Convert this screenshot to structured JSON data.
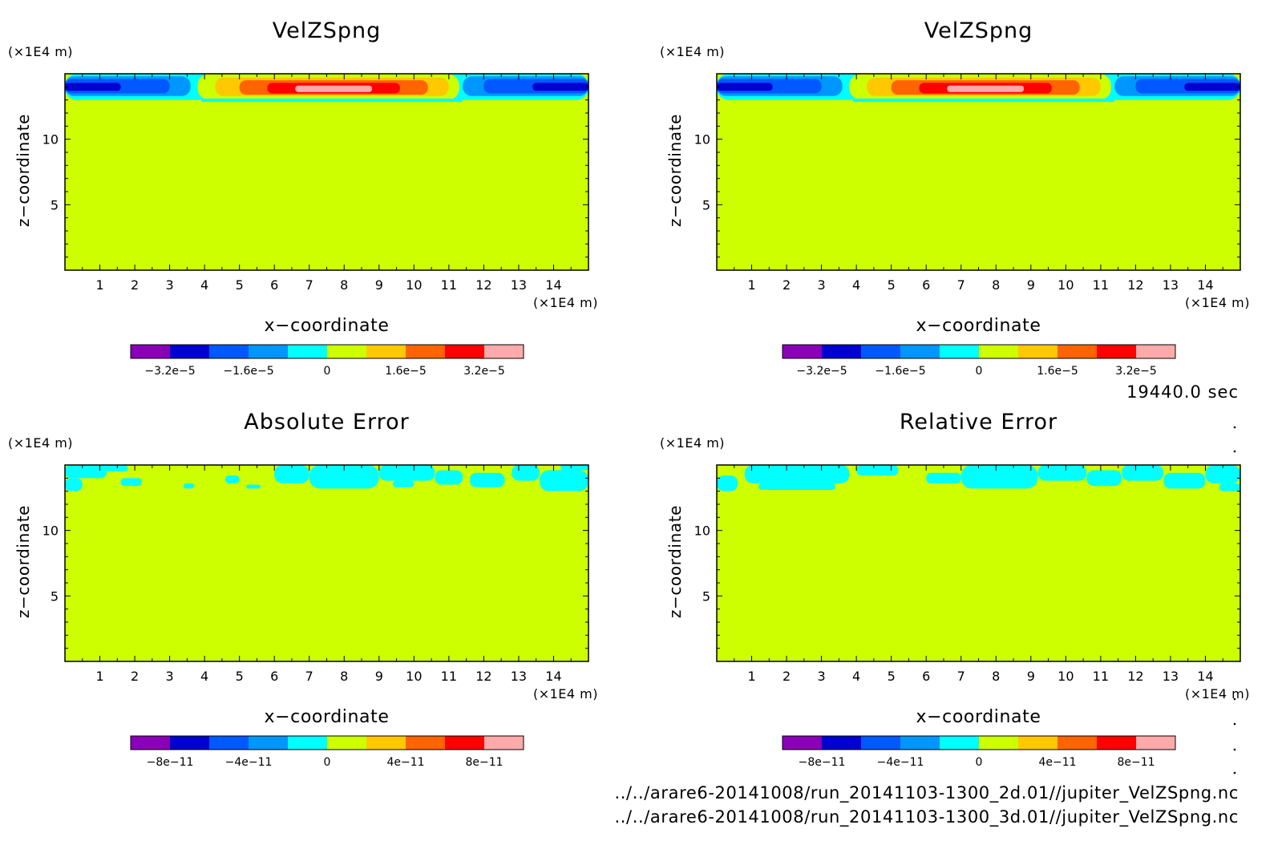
{
  "colors": {
    "background": "#cdff00",
    "frame": "#000000",
    "palette": [
      "#8a00b8",
      "#0000d0",
      "#0058ff",
      "#0096ff",
      "#00ffff",
      "#cdff00",
      "#ffc800",
      "#ff6400",
      "#ff0000",
      "#ffaaaa"
    ]
  },
  "footer": {
    "time_label": "19440.0 sec",
    "file_1": "../../arare6-20141008/run_20141103-1300_2d.01//jupiter_VelZSpng.nc",
    "file_2": "../../arare6-20141008/run_20141103-1300_3d.01//jupiter_VelZSpng.nc"
  },
  "chart_data": [
    {
      "id": "p1",
      "type": "heatmap",
      "title": "VelZSpng",
      "xlabel": "x−coordinate",
      "ylabel": "z−coordinate",
      "xunit": "(×1E4 m)",
      "yunit": "(×1E4 m)",
      "xlim": [
        0,
        15
      ],
      "ylim": [
        0,
        15
      ],
      "xticks": [
        1,
        2,
        3,
        4,
        5,
        6,
        7,
        8,
        9,
        10,
        11,
        12,
        13,
        14
      ],
      "yticks": [
        5,
        10
      ],
      "colorbar": {
        "levels": 10,
        "ticks": [
          {
            "level": 1,
            "label": "−3.2e−5"
          },
          {
            "level": 3,
            "label": "−1.6e−5"
          },
          {
            "level": 5,
            "label": "0"
          },
          {
            "level": 7,
            "label": "1.6e−5"
          },
          {
            "level": 9,
            "label": "3.2e−5"
          }
        ]
      },
      "bands": [
        {
          "x0": 0,
          "x1": 15,
          "y0": 13.0,
          "y1": 15,
          "color": 4
        },
        {
          "x0": 3.8,
          "x1": 11.3,
          "y0": 13.0,
          "y1": 15,
          "color": 5
        },
        {
          "x0": 0,
          "x1": 3.6,
          "y0": 13.3,
          "y1": 14.8,
          "color": 3
        },
        {
          "x0": 0,
          "x1": 3.0,
          "y0": 13.5,
          "y1": 14.6,
          "color": 2
        },
        {
          "x0": 0,
          "x1": 1.6,
          "y0": 13.7,
          "y1": 14.3,
          "color": 1
        },
        {
          "x0": 11.4,
          "x1": 15,
          "y0": 13.3,
          "y1": 14.8,
          "color": 3
        },
        {
          "x0": 12.0,
          "x1": 15,
          "y0": 13.5,
          "y1": 14.6,
          "color": 2
        },
        {
          "x0": 13.4,
          "x1": 15,
          "y0": 13.7,
          "y1": 14.3,
          "color": 1
        },
        {
          "x0": 4.3,
          "x1": 11.0,
          "y0": 13.3,
          "y1": 14.7,
          "color": 6
        },
        {
          "x0": 5.0,
          "x1": 10.4,
          "y0": 13.4,
          "y1": 14.5,
          "color": 7
        },
        {
          "x0": 5.8,
          "x1": 9.6,
          "y0": 13.5,
          "y1": 14.3,
          "color": 8
        },
        {
          "x0": 6.6,
          "x1": 8.8,
          "y0": 13.6,
          "y1": 14.1,
          "color": 9
        },
        {
          "x0": 3.9,
          "x1": 11.4,
          "y0": 12.85,
          "y1": 13.1,
          "color": 4
        }
      ]
    },
    {
      "id": "p2",
      "type": "heatmap",
      "title": "VelZSpng",
      "xlabel": "x−coordinate",
      "ylabel": "z−coordinate",
      "xunit": "(×1E4 m)",
      "yunit": "(×1E4 m)",
      "xlim": [
        0,
        15
      ],
      "ylim": [
        0,
        15
      ],
      "xticks": [
        1,
        2,
        3,
        4,
        5,
        6,
        7,
        8,
        9,
        10,
        11,
        12,
        13,
        14
      ],
      "yticks": [
        5,
        10
      ],
      "colorbar": {
        "levels": 10,
        "ticks": [
          {
            "level": 1,
            "label": "−3.2e−5"
          },
          {
            "level": 3,
            "label": "−1.6e−5"
          },
          {
            "level": 5,
            "label": "0"
          },
          {
            "level": 7,
            "label": "1.6e−5"
          },
          {
            "level": 9,
            "label": "3.2e−5"
          }
        ]
      },
      "bands": [
        {
          "x0": 0,
          "x1": 15,
          "y0": 13.0,
          "y1": 15,
          "color": 4
        },
        {
          "x0": 3.8,
          "x1": 11.3,
          "y0": 13.0,
          "y1": 15,
          "color": 5
        },
        {
          "x0": 0,
          "x1": 3.6,
          "y0": 13.3,
          "y1": 14.8,
          "color": 3
        },
        {
          "x0": 0,
          "x1": 3.0,
          "y0": 13.5,
          "y1": 14.6,
          "color": 2
        },
        {
          "x0": 0,
          "x1": 1.6,
          "y0": 13.7,
          "y1": 14.3,
          "color": 1
        },
        {
          "x0": 11.4,
          "x1": 15,
          "y0": 13.3,
          "y1": 14.8,
          "color": 3
        },
        {
          "x0": 12.0,
          "x1": 15,
          "y0": 13.5,
          "y1": 14.6,
          "color": 2
        },
        {
          "x0": 13.4,
          "x1": 15,
          "y0": 13.7,
          "y1": 14.3,
          "color": 1
        },
        {
          "x0": 4.3,
          "x1": 11.0,
          "y0": 13.3,
          "y1": 14.7,
          "color": 6
        },
        {
          "x0": 5.0,
          "x1": 10.4,
          "y0": 13.4,
          "y1": 14.5,
          "color": 7
        },
        {
          "x0": 5.8,
          "x1": 9.6,
          "y0": 13.5,
          "y1": 14.3,
          "color": 8
        },
        {
          "x0": 6.6,
          "x1": 8.8,
          "y0": 13.6,
          "y1": 14.1,
          "color": 9
        },
        {
          "x0": 3.9,
          "x1": 11.4,
          "y0": 12.85,
          "y1": 13.1,
          "color": 4
        }
      ]
    },
    {
      "id": "p3",
      "type": "heatmap",
      "title": "Absolute Error",
      "xlabel": "x−coordinate",
      "ylabel": "z−coordinate",
      "xunit": "(×1E4 m)",
      "yunit": "(×1E4 m)",
      "xlim": [
        0,
        15
      ],
      "ylim": [
        0,
        15
      ],
      "xticks": [
        1,
        2,
        3,
        4,
        5,
        6,
        7,
        8,
        9,
        10,
        11,
        12,
        13,
        14
      ],
      "yticks": [
        5,
        10
      ],
      "colorbar": {
        "levels": 10,
        "ticks": [
          {
            "level": 1,
            "label": "−8e−11"
          },
          {
            "level": 3,
            "label": "−4e−11"
          },
          {
            "level": 5,
            "label": "0"
          },
          {
            "level": 7,
            "label": "4e−11"
          },
          {
            "level": 9,
            "label": "8e−11"
          }
        ]
      },
      "bands": [
        {
          "x0": 0,
          "x1": 1.2,
          "y0": 14.0,
          "y1": 15,
          "color": 4
        },
        {
          "x0": 0,
          "x1": 0.5,
          "y0": 13.0,
          "y1": 14.0,
          "color": 4
        },
        {
          "x0": 1.0,
          "x1": 1.8,
          "y0": 14.5,
          "y1": 15,
          "color": 4
        },
        {
          "x0": 1.6,
          "x1": 2.2,
          "y0": 13.4,
          "y1": 14.0,
          "color": 4
        },
        {
          "x0": 3.4,
          "x1": 3.7,
          "y0": 13.2,
          "y1": 13.6,
          "color": 4
        },
        {
          "x0": 4.6,
          "x1": 5.0,
          "y0": 13.6,
          "y1": 14.2,
          "color": 4
        },
        {
          "x0": 5.2,
          "x1": 5.6,
          "y0": 13.2,
          "y1": 13.5,
          "color": 4
        },
        {
          "x0": 6.0,
          "x1": 7.0,
          "y0": 13.6,
          "y1": 15,
          "color": 4
        },
        {
          "x0": 7.0,
          "x1": 9.0,
          "y0": 13.2,
          "y1": 15,
          "color": 4
        },
        {
          "x0": 9.0,
          "x1": 10.6,
          "y0": 13.8,
          "y1": 15,
          "color": 4
        },
        {
          "x0": 9.4,
          "x1": 10.0,
          "y0": 13.3,
          "y1": 13.8,
          "color": 4
        },
        {
          "x0": 10.6,
          "x1": 11.4,
          "y0": 13.5,
          "y1": 14.6,
          "color": 4
        },
        {
          "x0": 11.6,
          "x1": 12.6,
          "y0": 13.3,
          "y1": 14.4,
          "color": 4
        },
        {
          "x0": 12.8,
          "x1": 13.6,
          "y0": 13.8,
          "y1": 15,
          "color": 4
        },
        {
          "x0": 13.6,
          "x1": 15,
          "y0": 13.0,
          "y1": 14.6,
          "color": 4
        },
        {
          "x0": 14.2,
          "x1": 15,
          "y0": 14.6,
          "y1": 15,
          "color": 4
        }
      ]
    },
    {
      "id": "p4",
      "type": "heatmap",
      "title": "Relative Error",
      "xlabel": "x−coordinate",
      "ylabel": "z−coordinate",
      "xunit": "(×1E4 m)",
      "yunit": "(×1E4 m)",
      "xlim": [
        0,
        15
      ],
      "ylim": [
        0,
        15
      ],
      "xticks": [
        1,
        2,
        3,
        4,
        5,
        6,
        7,
        8,
        9,
        10,
        11,
        12,
        13,
        14
      ],
      "yticks": [
        5,
        10
      ],
      "colorbar": {
        "levels": 10,
        "ticks": [
          {
            "level": 1,
            "label": "−8e−11"
          },
          {
            "level": 3,
            "label": "−4e−11"
          },
          {
            "level": 5,
            "label": "0"
          },
          {
            "level": 7,
            "label": "4e−11"
          },
          {
            "level": 9,
            "label": "8e−11"
          }
        ]
      },
      "bands": [
        {
          "x0": 0,
          "x1": 0.6,
          "y0": 13.0,
          "y1": 14.2,
          "color": 4
        },
        {
          "x0": 0.8,
          "x1": 3.8,
          "y0": 13.6,
          "y1": 15,
          "color": 4
        },
        {
          "x0": 1.2,
          "x1": 3.4,
          "y0": 13.1,
          "y1": 13.6,
          "color": 4
        },
        {
          "x0": 4.0,
          "x1": 5.2,
          "y0": 14.2,
          "y1": 15,
          "color": 4
        },
        {
          "x0": 6.0,
          "x1": 7.0,
          "y0": 13.6,
          "y1": 14.4,
          "color": 4
        },
        {
          "x0": 7.0,
          "x1": 9.2,
          "y0": 13.2,
          "y1": 15,
          "color": 4
        },
        {
          "x0": 9.2,
          "x1": 10.6,
          "y0": 13.8,
          "y1": 15,
          "color": 4
        },
        {
          "x0": 10.6,
          "x1": 11.6,
          "y0": 13.4,
          "y1": 14.6,
          "color": 4
        },
        {
          "x0": 11.6,
          "x1": 12.8,
          "y0": 13.8,
          "y1": 15,
          "color": 4
        },
        {
          "x0": 12.8,
          "x1": 14.0,
          "y0": 13.2,
          "y1": 14.4,
          "color": 4
        },
        {
          "x0": 14.0,
          "x1": 15,
          "y0": 13.6,
          "y1": 15,
          "color": 4
        },
        {
          "x0": 14.4,
          "x1": 15,
          "y0": 13.0,
          "y1": 13.6,
          "color": 4
        }
      ]
    }
  ]
}
